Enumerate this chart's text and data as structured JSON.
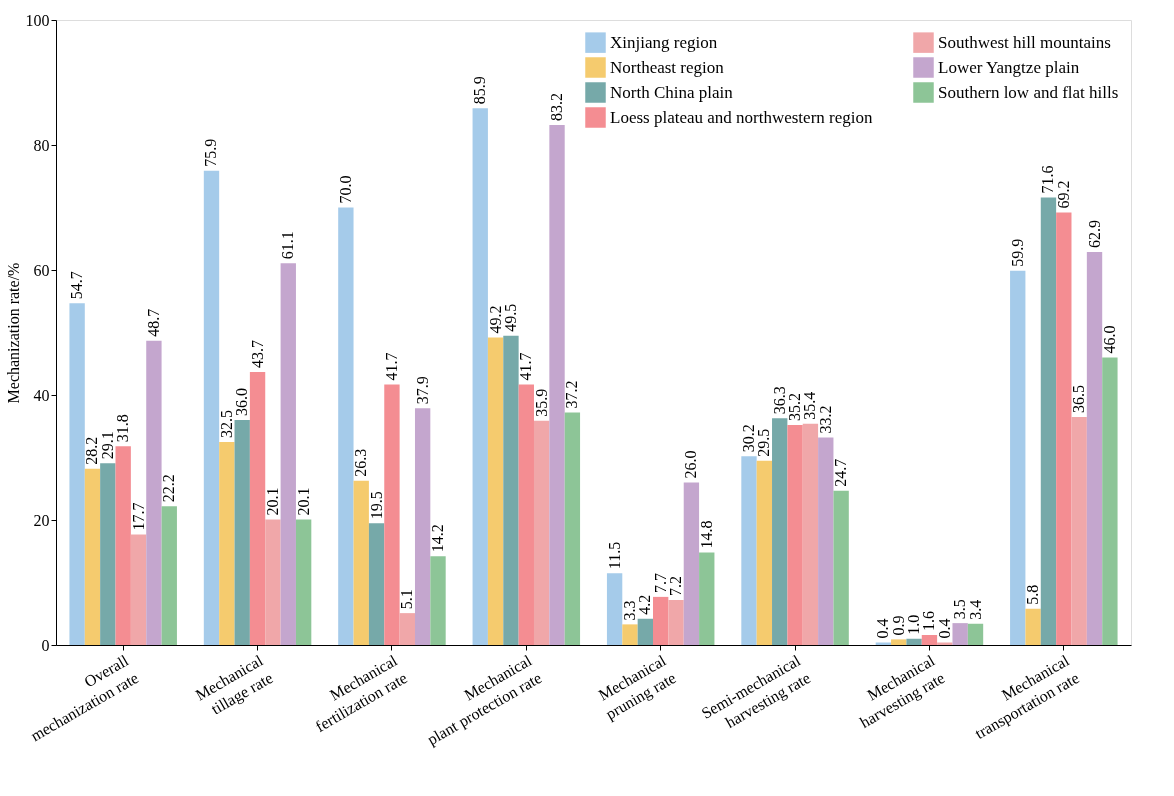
{
  "chart_data": {
    "type": "bar",
    "ylabel": "Mechanization rate/%",
    "categories": [
      "Overall\nmechanization rate",
      "Mechanical\ntillage rate",
      "Mechanical\nfertilization rate",
      "Mechanical\nplant protection rate",
      "Mechanical\npruning rate",
      "Semi-mechanical\nharvesting rate",
      "Mechanical\nharvesting rate",
      "Mechanical\ntransportation rate"
    ],
    "series": [
      {
        "name": "Xinjiang region",
        "color": "#a5cbea",
        "values": [
          54.7,
          75.9,
          70.0,
          85.9,
          11.5,
          30.2,
          0.4,
          59.9
        ],
        "value_labels": [
          "54.7",
          "75.9",
          "70.0",
          "85.9",
          "11.5",
          "30.2",
          "0.4",
          "59.9"
        ]
      },
      {
        "name": "Northeast region",
        "color": "#f5cb6e",
        "values": [
          28.2,
          32.5,
          26.3,
          49.2,
          3.3,
          29.5,
          0.9,
          5.8
        ],
        "value_labels": [
          "28.2",
          "32.5",
          "26.3",
          "49.2",
          "3.3",
          "29.5",
          "0.9",
          "5.8"
        ]
      },
      {
        "name": "North China plain",
        "color": "#76a9a9",
        "values": [
          29.1,
          36.0,
          19.5,
          49.5,
          4.2,
          36.3,
          1.0,
          71.6
        ],
        "value_labels": [
          "29.1",
          "36.0",
          "19.5",
          "49.5",
          "4.2",
          "36.3",
          "1.0",
          "71.6"
        ]
      },
      {
        "name": "Loess plateau and northwestern region",
        "color": "#f48d92",
        "values": [
          31.8,
          43.7,
          41.7,
          41.7,
          7.7,
          35.2,
          1.6,
          69.2
        ],
        "value_labels": [
          "31.8",
          "43.7",
          "41.7",
          "41.7",
          "7.7",
          "35.2",
          "1.6",
          "69.2"
        ]
      },
      {
        "name": "Southwest hill mountains",
        "color": "#f0a7a9",
        "values": [
          17.7,
          20.1,
          5.1,
          35.9,
          7.2,
          35.4,
          0.4,
          36.5
        ],
        "value_labels": [
          "17.7",
          "20.1",
          "5.1",
          "35.9",
          "7.2",
          "35.4",
          "0.4",
          "36.5"
        ]
      },
      {
        "name": "Lower Yangtze plain",
        "color": "#c4a6ce",
        "values": [
          48.7,
          61.1,
          37.9,
          83.2,
          26.0,
          33.2,
          3.5,
          62.9
        ],
        "value_labels": [
          "48.7",
          "61.1",
          "37.9",
          "83.2",
          "26.0",
          "33.2",
          "3.5",
          "62.9"
        ]
      },
      {
        "name": "Southern low and flat hills",
        "color": "#8dc597",
        "values": [
          22.2,
          20.1,
          14.2,
          37.2,
          14.8,
          24.7,
          3.4,
          46.0
        ],
        "value_labels": [
          "22.2",
          "20.1",
          "14.2",
          "37.2",
          "14.8",
          "24.7",
          "3.4",
          "46.0"
        ]
      }
    ],
    "ylim": [
      0,
      100
    ],
    "yticks": [
      0,
      20,
      40,
      60,
      80,
      100
    ],
    "grid": false,
    "legend": "top right"
  }
}
